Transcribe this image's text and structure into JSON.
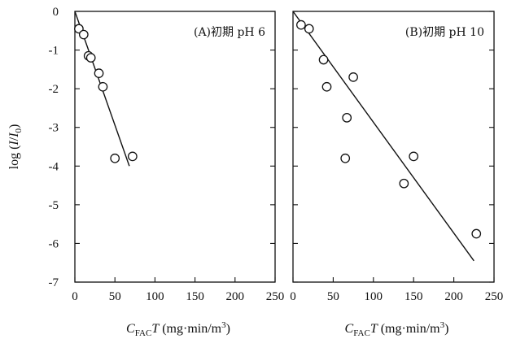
{
  "chart_data": [
    {
      "type": "scatter",
      "panel_label": "(A)初期 pH 6",
      "xlabel_main": "C",
      "xlabel_sub": "FAC",
      "xlabel_var": "T",
      "xlabel_unit": "(mg·min/m",
      "xlabel_sup": "3",
      "xlabel_close": ")",
      "ylabel_text": "log (I/I",
      "ylabel_sub": "0",
      "ylabel_close": ")",
      "xlim": [
        0,
        250
      ],
      "ylim": [
        -7,
        0
      ],
      "xticks": [
        0,
        50,
        100,
        150,
        200,
        250
      ],
      "xtick_labels": [
        "0",
        "50",
        "100",
        "150",
        "200",
        "250"
      ],
      "yticks": [
        0,
        -1,
        -2,
        -3,
        -4,
        -5,
        -6,
        -7
      ],
      "ytick_labels": [
        "0",
        "-1",
        "-2",
        "-3",
        "-4",
        "-5",
        "-6",
        "-7"
      ],
      "points": [
        {
          "x": 5,
          "y": -0.45
        },
        {
          "x": 11,
          "y": -0.6
        },
        {
          "x": 17,
          "y": -1.15
        },
        {
          "x": 20,
          "y": -1.2
        },
        {
          "x": 30,
          "y": -1.6
        },
        {
          "x": 35,
          "y": -1.95
        },
        {
          "x": 50,
          "y": -3.8
        },
        {
          "x": 72,
          "y": -3.75
        }
      ],
      "fit_line": [
        {
          "x": 0,
          "y": 0
        },
        {
          "x": 68,
          "y": -4.0
        }
      ],
      "legend": "none",
      "grid": false
    },
    {
      "type": "scatter",
      "panel_label": "(B)初期 pH 10",
      "xlabel_main": "C",
      "xlabel_sub": "FAC",
      "xlabel_var": "T",
      "xlabel_unit": "(mg·min/m",
      "xlabel_sup": "3",
      "xlabel_close": ")",
      "xlim": [
        0,
        250
      ],
      "ylim": [
        -7,
        0
      ],
      "xticks": [
        0,
        50,
        100,
        150,
        200,
        250
      ],
      "xtick_labels": [
        "0",
        "50",
        "100",
        "150",
        "200",
        "250"
      ],
      "yticks": [
        0,
        -1,
        -2,
        -3,
        -4,
        -5,
        -6,
        -7
      ],
      "points": [
        {
          "x": 10,
          "y": -0.35
        },
        {
          "x": 20,
          "y": -0.45
        },
        {
          "x": 38,
          "y": -1.25
        },
        {
          "x": 42,
          "y": -1.95
        },
        {
          "x": 65,
          "y": -3.8
        },
        {
          "x": 67,
          "y": -2.75
        },
        {
          "x": 75,
          "y": -1.7
        },
        {
          "x": 138,
          "y": -4.45
        },
        {
          "x": 150,
          "y": -3.75
        },
        {
          "x": 228,
          "y": -5.75
        }
      ],
      "fit_line": [
        {
          "x": 0,
          "y": 0
        },
        {
          "x": 225,
          "y": -6.45
        }
      ],
      "legend": "none",
      "grid": false
    }
  ]
}
